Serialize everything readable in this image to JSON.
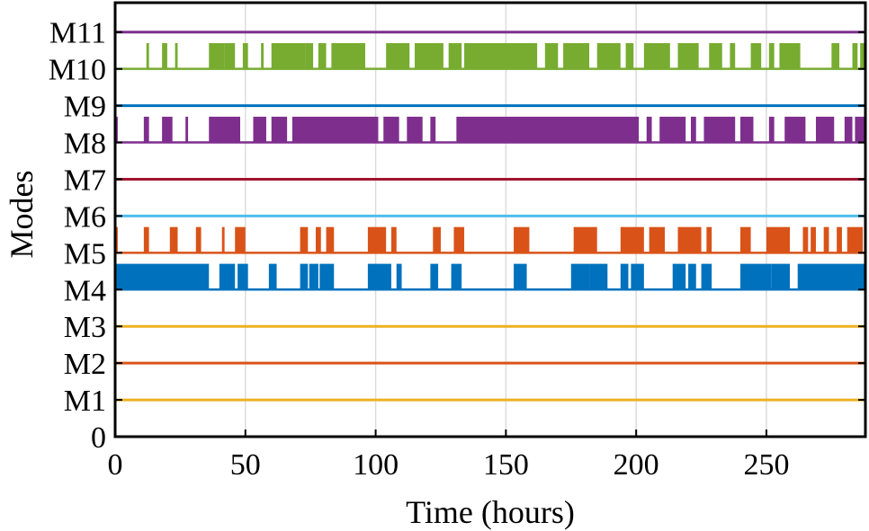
{
  "chart_data": {
    "type": "line",
    "title": "",
    "xlabel": "Time (hours)",
    "ylabel": "Modes",
    "xlim": [
      0,
      288
    ],
    "ylim": [
      0,
      11.8
    ],
    "x_ticks": [
      0,
      50,
      100,
      150,
      200,
      250
    ],
    "x_tick_labels": [
      "0",
      "50",
      "100",
      "150",
      "200",
      "250"
    ],
    "y_ticks": [
      0,
      1,
      2,
      3,
      4,
      5,
      6,
      7,
      8,
      9,
      10,
      11
    ],
    "y_tick_labels": [
      "0",
      "M1",
      "M2",
      "M3",
      "M4",
      "M5",
      "M6",
      "M7",
      "M8",
      "M9",
      "M10",
      "M11"
    ],
    "grid": "vertical",
    "series": [
      {
        "mode": "M1",
        "color": "#EDB120",
        "style": "constant",
        "level": 1
      },
      {
        "mode": "M2",
        "color": "#D95319",
        "style": "constant",
        "level": 2
      },
      {
        "mode": "M3",
        "color": "#EDB120",
        "style": "constant",
        "level": 3
      },
      {
        "mode": "M4",
        "color": "#0072BD",
        "style": "toggle",
        "level": 4,
        "high": 4.7,
        "active_intervals": [
          [
            0,
            36
          ],
          [
            40,
            46
          ],
          [
            47,
            51
          ],
          [
            59,
            62
          ],
          [
            71,
            74
          ],
          [
            74.5,
            78
          ],
          [
            78.5,
            84
          ],
          [
            97,
            106
          ],
          [
            108,
            110
          ],
          [
            121,
            124
          ],
          [
            129,
            133
          ],
          [
            153,
            158
          ],
          [
            175,
            182
          ],
          [
            182,
            189
          ],
          [
            194,
            197
          ],
          [
            198,
            203
          ],
          [
            214,
            219
          ],
          [
            220,
            223
          ],
          [
            225,
            229
          ],
          [
            240,
            252
          ],
          [
            252,
            259
          ],
          [
            262,
            288
          ]
        ]
      },
      {
        "mode": "M5",
        "color": "#D95319",
        "style": "toggle",
        "level": 5,
        "high": 5.7,
        "active_intervals": [
          [
            0,
            1
          ],
          [
            11,
            13
          ],
          [
            21,
            24
          ],
          [
            31,
            33
          ],
          [
            41,
            42
          ],
          [
            46,
            50
          ],
          [
            71,
            74
          ],
          [
            77,
            79
          ],
          [
            81,
            84
          ],
          [
            97,
            104
          ],
          [
            106,
            108
          ],
          [
            122,
            125
          ],
          [
            130,
            134
          ],
          [
            153,
            159
          ],
          [
            176,
            185
          ],
          [
            194,
            203
          ],
          [
            205,
            211
          ],
          [
            216,
            225
          ],
          [
            227,
            229
          ],
          [
            240,
            244
          ],
          [
            250,
            259
          ],
          [
            264,
            266
          ],
          [
            267,
            269
          ],
          [
            272,
            274
          ],
          [
            277,
            279
          ],
          [
            281,
            287
          ]
        ]
      },
      {
        "mode": "M6",
        "color": "#4DBEEE",
        "style": "constant",
        "level": 6
      },
      {
        "mode": "M7",
        "color": "#A2142F",
        "style": "constant",
        "level": 7
      },
      {
        "mode": "M8",
        "color": "#7E2F8E",
        "style": "toggle",
        "level": 8,
        "high": 8.7,
        "active_intervals": [
          [
            0,
            1
          ],
          [
            11,
            13
          ],
          [
            18,
            22
          ],
          [
            27,
            28
          ],
          [
            36,
            48
          ],
          [
            53,
            58
          ],
          [
            60,
            66
          ],
          [
            68,
            101
          ],
          [
            103,
            109
          ],
          [
            112,
            118
          ],
          [
            121,
            123
          ],
          [
            131,
            201
          ],
          [
            204,
            206
          ],
          [
            209,
            219
          ],
          [
            221,
            223
          ],
          [
            226,
            238
          ],
          [
            240,
            245
          ],
          [
            251,
            253
          ],
          [
            257,
            265
          ],
          [
            269,
            276
          ],
          [
            280,
            283
          ],
          [
            284,
            288
          ]
        ]
      },
      {
        "mode": "M9",
        "color": "#0072BD",
        "style": "constant",
        "level": 9
      },
      {
        "mode": "M10",
        "color": "#77AC30",
        "style": "toggle",
        "level": 10,
        "high": 10.7,
        "active_intervals": [
          [
            12,
            13
          ],
          [
            18,
            20
          ],
          [
            23,
            24
          ],
          [
            36,
            42
          ],
          [
            42,
            46
          ],
          [
            49,
            51
          ],
          [
            56,
            57
          ],
          [
            60,
            73
          ],
          [
            73,
            76
          ],
          [
            78,
            81
          ],
          [
            83,
            96
          ],
          [
            104,
            113
          ],
          [
            115,
            126
          ],
          [
            128,
            133
          ],
          [
            134,
            162
          ],
          [
            165,
            170
          ],
          [
            172,
            182
          ],
          [
            185,
            194
          ],
          [
            196,
            199
          ],
          [
            203,
            213
          ],
          [
            216,
            224
          ],
          [
            228,
            233
          ],
          [
            236,
            238
          ],
          [
            244,
            248
          ],
          [
            251,
            253
          ],
          [
            255,
            263
          ],
          [
            275,
            278
          ],
          [
            283,
            285
          ],
          [
            286,
            288
          ]
        ]
      },
      {
        "mode": "M11",
        "color": "#7E2F8E",
        "style": "constant",
        "level": 11
      }
    ]
  }
}
